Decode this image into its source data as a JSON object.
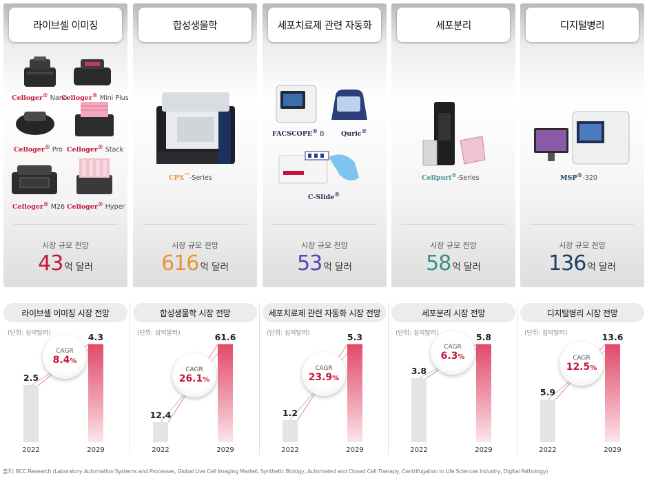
{
  "cards": [
    {
      "title": "라이브셀 이미징",
      "forecast_label": "시장 규모 전망",
      "value": "43",
      "unit": "억 달러",
      "color": "#c2183a"
    },
    {
      "title": "합성생물학",
      "forecast_label": "시장 규모 전망",
      "value": "616",
      "unit": "억 달러",
      "color": "#e6962e"
    },
    {
      "title": "세포치료제 관련 자동화",
      "forecast_label": "시장 규모 전망",
      "value": "53",
      "unit": "억 달러",
      "color": "#5b3fb8"
    },
    {
      "title": "세포분리",
      "forecast_label": "시장 규모 전망",
      "value": "58",
      "unit": "억 달러",
      "color": "#3a8f8a"
    },
    {
      "title": "디지털병리",
      "forecast_label": "시장 규모 전망",
      "value": "136",
      "unit": "억 달러",
      "color": "#1d3d6b"
    }
  ],
  "products": {
    "celloger_nano": {
      "brand": "Celloger",
      "mark": "®",
      "suffix": " Nano"
    },
    "celloger_mini": {
      "brand": "Celloger",
      "mark": "®",
      "suffix": " Mini Plus"
    },
    "celloger_pro": {
      "brand": "Celloger",
      "mark": "®",
      "suffix": " Pro"
    },
    "celloger_stack": {
      "brand": "Celloger",
      "mark": "®",
      "suffix": " Stack"
    },
    "celloger_m26": {
      "brand": "Celloger",
      "mark": "®",
      "suffix": " M26"
    },
    "celloger_hyper": {
      "brand": "Celloger",
      "mark": "®",
      "suffix": " Hyper"
    },
    "cpx": {
      "brand": "CPX",
      "mark": "™",
      "suffix": "-Series"
    },
    "facscope": {
      "brand": "FACSCOPE",
      "mark": "®",
      "suffix": " B"
    },
    "quric": {
      "brand": "Quric",
      "mark": "®",
      "suffix": ""
    },
    "cslide": {
      "brand": "C-Slide",
      "mark": "®",
      "suffix": ""
    },
    "cellpuri": {
      "brand": "Cellpuri",
      "mark": "®",
      "suffix": "-Series"
    },
    "msp": {
      "brand": "MSP",
      "mark": "®",
      "suffix": "-320"
    }
  },
  "chart_data": [
    {
      "type": "bar",
      "title": "라이브셀 이미징 시장 전망",
      "unit_note": "(단위: 십억달러)",
      "categories": [
        "2022",
        "2029"
      ],
      "values": [
        2.5,
        4.3
      ],
      "cagr_label": "CAGR",
      "cagr": "8.4",
      "cagr_unit": "%"
    },
    {
      "type": "bar",
      "title": "합성생물학 시장 전망",
      "unit_note": "(단위: 십억달러)",
      "categories": [
        "2022",
        "2029"
      ],
      "values": [
        12.4,
        61.6
      ],
      "cagr_label": "CAGR",
      "cagr": "26.1",
      "cagr_unit": "%"
    },
    {
      "type": "bar",
      "title": "세포치료제 관련 자동화 시장 전망",
      "unit_note": "(단위: 십억달러)",
      "categories": [
        "2022",
        "2029"
      ],
      "values": [
        1.2,
        5.3
      ],
      "cagr_label": "CAGR",
      "cagr": "23.9",
      "cagr_unit": "%"
    },
    {
      "type": "bar",
      "title": "세포분리 시장 전망",
      "unit_note": "(단위: 십억달러)",
      "categories": [
        "2022",
        "2029"
      ],
      "values": [
        3.8,
        5.8
      ],
      "cagr_label": "CAGR",
      "cagr": "6.3",
      "cagr_unit": "%"
    },
    {
      "type": "bar",
      "title": "디지털병리 시장 전망",
      "unit_note": "(단위: 십억달러)",
      "categories": [
        "2022",
        "2029"
      ],
      "values": [
        5.9,
        13.6
      ],
      "cagr_label": "CAGR",
      "cagr": "12.5",
      "cagr_unit": "%"
    }
  ],
  "colors": {
    "accent": "#c2183a",
    "bar_2022": "#e4e4e4",
    "bar_2029": "#e24a6a"
  },
  "source": "출처: BCC Research (Laboratory Automation Systems and Processes, Global Live Cell Imaging Market, Synthetic Biology, Automated and Closed Cell Therapy, Centrifugation in Life Sciences Industry, Digital Pathology)"
}
